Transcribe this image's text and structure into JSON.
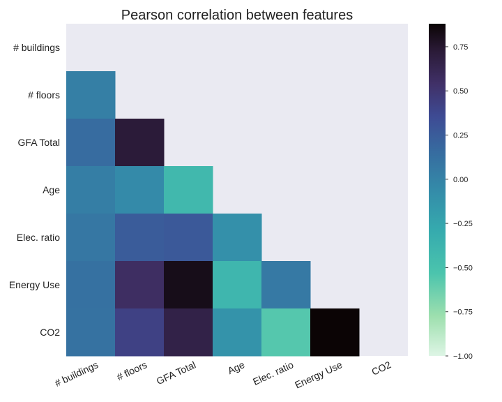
{
  "chart_data": {
    "type": "heatmap",
    "title": "Pearson correlation between features",
    "xlabel": "",
    "ylabel": "",
    "row_labels": [
      "# buildings",
      "# floors",
      "GFA Total",
      "Age",
      "Elec. ratio",
      "Energy Use",
      "CO2"
    ],
    "col_labels": [
      "# buildings",
      "# floors",
      "GFA Total",
      "Age",
      "Elec. ratio",
      "Energy Use",
      "CO2"
    ],
    "mask": "upper triangle including diagonal",
    "matrix": [
      [
        null,
        null,
        null,
        null,
        null,
        null,
        null
      ],
      [
        0.02,
        null,
        null,
        null,
        null,
        null,
        null
      ],
      [
        0.15,
        0.72,
        null,
        null,
        null,
        null,
        null
      ],
      [
        0.03,
        -0.05,
        -0.42,
        null,
        null,
        null,
        null
      ],
      [
        0.08,
        0.25,
        0.27,
        -0.1,
        null,
        null,
        null
      ],
      [
        0.12,
        0.56,
        0.82,
        -0.4,
        0.06,
        null,
        null
      ],
      [
        0.11,
        0.42,
        0.66,
        -0.12,
        -0.56,
        0.88,
        null
      ]
    ],
    "colorbar": {
      "colormap": "mako_r",
      "range": [
        -1.0,
        0.88
      ],
      "ticks": [
        0.75,
        0.5,
        0.25,
        0.0,
        -0.25,
        -0.5,
        -0.75,
        -1.0
      ],
      "tick_labels": [
        "0.75",
        "0.50",
        "0.25",
        "0.00",
        "−0.25",
        "−0.50",
        "−0.75",
        "−1.00"
      ]
    },
    "grid": false,
    "legend": "colorbar-right",
    "colors": {
      "masked_background": "#eaeaf2"
    }
  }
}
